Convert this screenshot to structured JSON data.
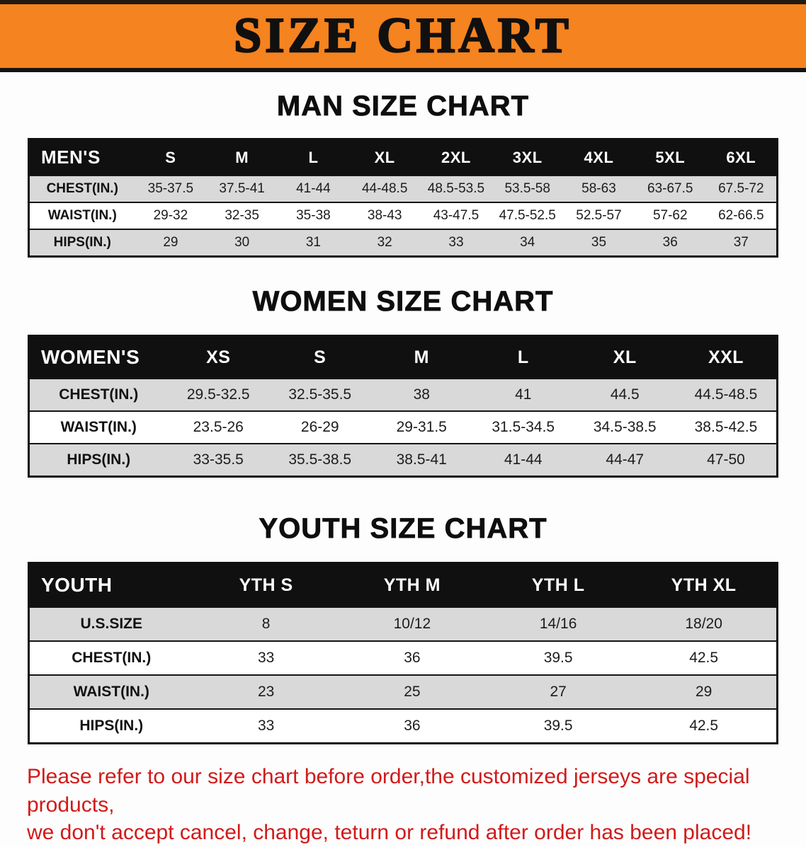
{
  "banner": {
    "title": "SIZE CHART"
  },
  "colors": {
    "banner_bg": "#f5831f",
    "table_header_bg": "#101010",
    "row_alt_gray": "#d9d9d9",
    "note_red": "#d11a1a"
  },
  "men": {
    "section_title": "MAN SIZE CHART",
    "header": [
      "MEN'S",
      "S",
      "M",
      "L",
      "XL",
      "2XL",
      "3XL",
      "4XL",
      "5XL",
      "6XL"
    ],
    "rows": [
      [
        "CHEST(IN.)",
        "35-37.5",
        "37.5-41",
        "41-44",
        "44-48.5",
        "48.5-53.5",
        "53.5-58",
        "58-63",
        "63-67.5",
        "67.5-72"
      ],
      [
        "WAIST(IN.)",
        "29-32",
        "32-35",
        "35-38",
        "38-43",
        "43-47.5",
        "47.5-52.5",
        "52.5-57",
        "57-62",
        "62-66.5"
      ],
      [
        "HIPS(IN.)",
        "29",
        "30",
        "31",
        "32",
        "33",
        "34",
        "35",
        "36",
        "37"
      ]
    ]
  },
  "women": {
    "section_title": "WOMEN SIZE CHART",
    "header": [
      "WOMEN'S",
      "XS",
      "S",
      "M",
      "L",
      "XL",
      "XXL"
    ],
    "rows": [
      [
        "CHEST(IN.)",
        "29.5-32.5",
        "32.5-35.5",
        "38",
        "41",
        "44.5",
        "44.5-48.5"
      ],
      [
        "WAIST(IN.)",
        "23.5-26",
        "26-29",
        "29-31.5",
        "31.5-34.5",
        "34.5-38.5",
        "38.5-42.5"
      ],
      [
        "HIPS(IN.)",
        "33-35.5",
        "35.5-38.5",
        "38.5-41",
        "41-44",
        "44-47",
        "47-50"
      ]
    ]
  },
  "youth": {
    "section_title": "YOUTH SIZE CHART",
    "header": [
      "YOUTH",
      "YTH S",
      "YTH M",
      "YTH L",
      "YTH XL"
    ],
    "rows": [
      [
        "U.S.SIZE",
        "8",
        "10/12",
        "14/16",
        "18/20"
      ],
      [
        "CHEST(IN.)",
        "33",
        "36",
        "39.5",
        "42.5"
      ],
      [
        "WAIST(IN.)",
        "23",
        "25",
        "27",
        "29"
      ],
      [
        "HIPS(IN.)",
        "33",
        "36",
        "39.5",
        "42.5"
      ]
    ]
  },
  "note": {
    "line1": "Please refer to our size chart before order,the customized jerseys are special products,",
    "line2": "we don't accept cancel, change, teturn or refund after order has been placed!"
  }
}
